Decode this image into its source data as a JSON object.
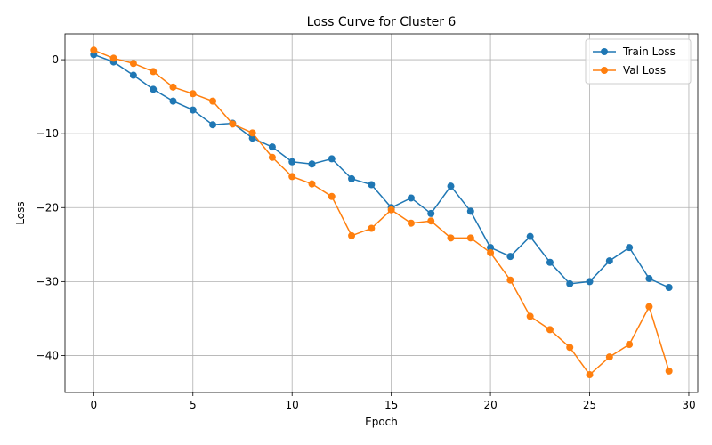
{
  "chart_data": {
    "type": "line",
    "title": "Loss Curve for Cluster 6",
    "xlabel": "Epoch",
    "ylabel": "Loss",
    "xlim": [
      -1.45,
      30.45
    ],
    "ylim": [
      -45,
      3.5
    ],
    "xticks": [
      0,
      5,
      10,
      15,
      20,
      25,
      30
    ],
    "yticks": [
      0,
      -10,
      -20,
      -30,
      -40
    ],
    "grid": true,
    "legend_position": "top-right",
    "x": [
      0,
      1,
      2,
      3,
      4,
      5,
      6,
      7,
      8,
      9,
      10,
      11,
      12,
      13,
      14,
      15,
      16,
      17,
      18,
      19,
      20,
      21,
      22,
      23,
      24,
      25,
      26,
      27,
      28,
      29
    ],
    "series": [
      {
        "name": "Train Loss",
        "color": "#1f77b4",
        "values": [
          0.7,
          -0.3,
          -2.1,
          -4.0,
          -5.6,
          -6.8,
          -8.8,
          -8.6,
          -10.6,
          -11.8,
          -13.8,
          -14.1,
          -13.4,
          -16.1,
          -16.9,
          -20.0,
          -18.7,
          -20.8,
          -17.1,
          -20.5,
          -25.4,
          -26.6,
          -23.9,
          -27.4,
          -30.3,
          -30.0,
          -27.2,
          -25.4,
          -29.6,
          -30.8
        ]
      },
      {
        "name": "Val Loss",
        "color": "#ff7f0e",
        "values": [
          1.3,
          0.2,
          -0.5,
          -1.6,
          -3.7,
          -4.6,
          -5.6,
          -8.7,
          -9.9,
          -13.2,
          -15.8,
          -16.8,
          -18.5,
          -23.8,
          -22.8,
          -20.3,
          -22.1,
          -21.8,
          -24.1,
          -24.1,
          -26.1,
          -29.8,
          -34.7,
          -36.5,
          -38.9,
          -42.6,
          -40.2,
          -38.5,
          -33.4,
          -42.1
        ]
      }
    ]
  }
}
